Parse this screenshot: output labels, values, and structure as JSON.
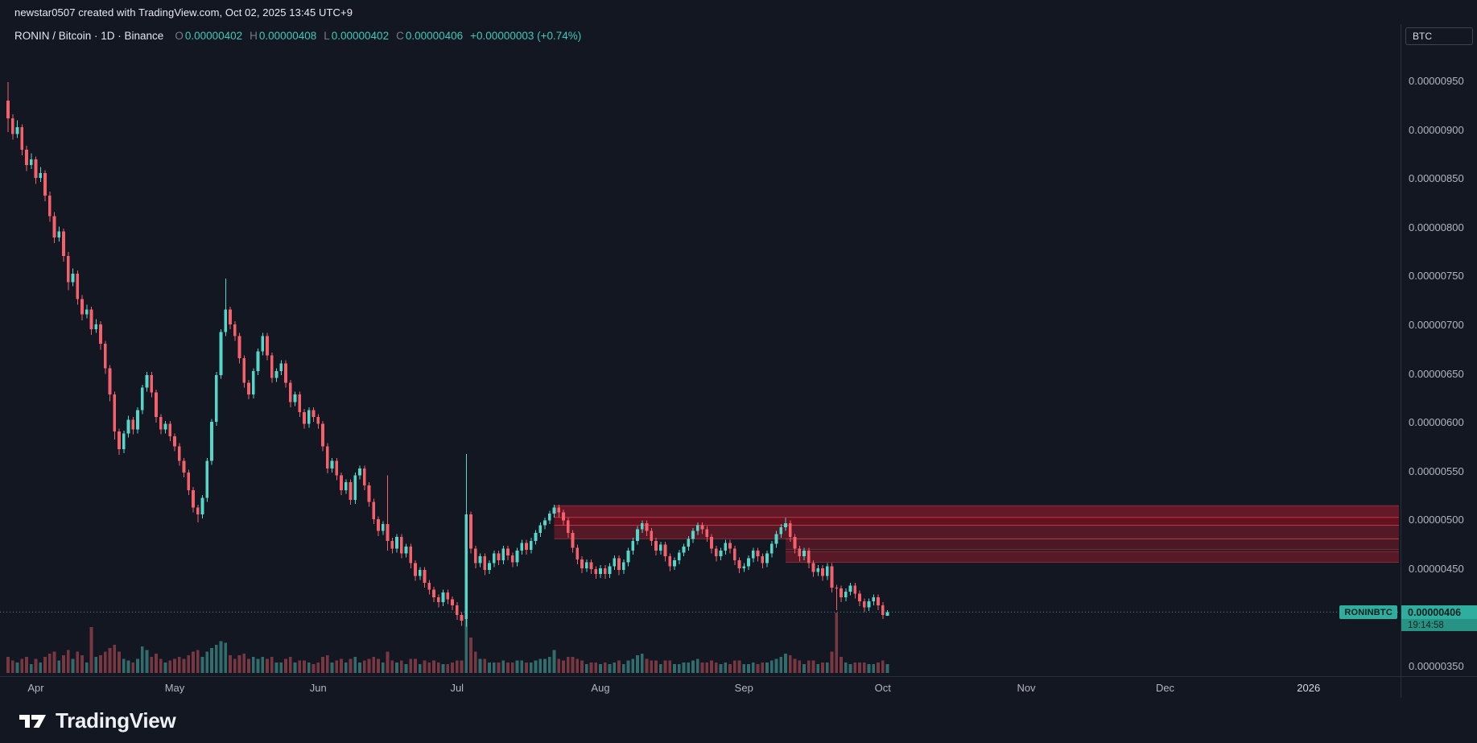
{
  "attribution": "newstar0507 created with TradingView.com, Oct 02, 2025 13:45 UTC+9",
  "header": {
    "symbol": "RONIN / Bitcoin · 1D · Binance",
    "ohlc": {
      "o_label": "O",
      "o": "0.00000402",
      "h_label": "H",
      "h": "0.00000408",
      "l_label": "L",
      "l": "0.00000402",
      "c_label": "C",
      "c": "0.00000406",
      "change": "+0.00000003 (+0.74%)"
    }
  },
  "chart_label": "RONINBTC",
  "price_axis": {
    "currency": "BTC",
    "labels": [
      {
        "price": 950,
        "text": "0.00000950"
      },
      {
        "price": 900,
        "text": "0.00000900"
      },
      {
        "price": 850,
        "text": "0.00000850"
      },
      {
        "price": 800,
        "text": "0.00000800"
      },
      {
        "price": 750,
        "text": "0.00000750"
      },
      {
        "price": 700,
        "text": "0.00000700"
      },
      {
        "price": 650,
        "text": "0.00000650"
      },
      {
        "price": 600,
        "text": "0.00000600"
      },
      {
        "price": 550,
        "text": "0.00000550"
      },
      {
        "price": 500,
        "text": "0.00000500"
      },
      {
        "price": 450,
        "text": "0.00000450"
      },
      {
        "price": 350,
        "text": "0.00000350"
      }
    ],
    "last_price": {
      "text": "0.00000406",
      "price": 406,
      "countdown": "19:14:58"
    }
  },
  "time_axis": {
    "labels": [
      {
        "text": "Apr",
        "idx": 6
      },
      {
        "text": "May",
        "idx": 36
      },
      {
        "text": "Jun",
        "idx": 67
      },
      {
        "text": "Jul",
        "idx": 97
      },
      {
        "text": "Aug",
        "idx": 128
      },
      {
        "text": "Sep",
        "idx": 159
      },
      {
        "text": "Oct",
        "idx": 189
      },
      {
        "text": "Nov",
        "idx": 220
      },
      {
        "text": "Dec",
        "idx": 250
      },
      {
        "text": "2026",
        "idx": 281,
        "year": true
      }
    ]
  },
  "logo": {
    "text": "TradingView"
  },
  "colors": {
    "bg": "#131722",
    "panel_border": "#2a2e39",
    "text": "#d1d4dc",
    "text_dim": "#787b86",
    "axis_text": "#b2b5be",
    "up": "#54d6c8",
    "down": "#f6606b",
    "vol_up": "rgba(84,214,200,0.45)",
    "vol_down": "rgba(246,96,107,0.45)",
    "tag_bg": "#2fae9f",
    "tag_bg_dark": "#279384",
    "tag_text": "#0b1f1c",
    "price_line": "rgba(110,203,190,0.65)",
    "header_value": "#3fc8b9",
    "attribution_text": "#e8eaef",
    "logo_text": "#eef0f4",
    "zone_edge": "rgba(247,82,95,0.40)"
  },
  "chart_data": {
    "type": "candlestick",
    "title": "RONIN / Bitcoin",
    "interval": "1D",
    "exchange": "Binance",
    "price_factor": 1e-08,
    "first_candle_date": "2025-03-26",
    "last_candle_date": "2025-10-02",
    "ylim": [
      340,
      980
    ],
    "last_price": 406,
    "zones": [
      {
        "from_price": 503,
        "to_price": 515,
        "start_index": 118,
        "color": "rgba(170,28,45,0.55)"
      },
      {
        "from_price": 495,
        "to_price": 503,
        "start_index": 118,
        "color": "rgba(126,16,32,0.78)"
      },
      {
        "from_price": 481,
        "to_price": 495,
        "start_index": 118,
        "color": "rgba(165,28,45,0.45)"
      },
      {
        "from_price": 470,
        "to_price": 481,
        "start_index": 168,
        "color": "rgba(165,28,45,0.40)"
      },
      {
        "from_price": 457,
        "to_price": 468,
        "start_index": 168,
        "color": "rgba(160,26,42,0.50)"
      }
    ],
    "candles": [
      [
        930,
        949,
        898,
        912,
        9
      ],
      [
        912,
        916,
        890,
        896,
        7
      ],
      [
        896,
        910,
        892,
        903,
        6
      ],
      [
        903,
        906,
        874,
        880,
        8
      ],
      [
        880,
        884,
        858,
        864,
        9
      ],
      [
        864,
        876,
        860,
        870,
        5
      ],
      [
        870,
        873,
        845,
        851,
        8
      ],
      [
        851,
        862,
        847,
        856,
        6
      ],
      [
        856,
        859,
        827,
        833,
        9
      ],
      [
        833,
        837,
        806,
        812,
        11
      ],
      [
        812,
        816,
        784,
        790,
        12
      ],
      [
        790,
        801,
        786,
        796,
        7
      ],
      [
        796,
        799,
        765,
        771,
        10
      ],
      [
        771,
        775,
        736,
        744,
        13
      ],
      [
        744,
        758,
        740,
        753,
        8
      ],
      [
        753,
        756,
        721,
        727,
        12
      ],
      [
        727,
        731,
        705,
        711,
        10
      ],
      [
        711,
        721,
        707,
        716,
        6
      ],
      [
        716,
        719,
        690,
        696,
        26
      ],
      [
        696,
        706,
        692,
        701,
        9
      ],
      [
        701,
        704,
        675,
        681,
        10
      ],
      [
        681,
        684,
        650,
        656,
        12
      ],
      [
        656,
        659,
        622,
        629,
        14
      ],
      [
        629,
        632,
        583,
        591,
        16
      ],
      [
        591,
        594,
        567,
        573,
        12
      ],
      [
        573,
        592,
        569,
        589,
        8
      ],
      [
        589,
        607,
        585,
        603,
        7
      ],
      [
        603,
        606,
        588,
        593,
        6
      ],
      [
        593,
        616,
        589,
        613,
        8
      ],
      [
        613,
        639,
        609,
        636,
        15
      ],
      [
        636,
        652,
        632,
        649,
        13
      ],
      [
        649,
        652,
        626,
        631,
        9
      ],
      [
        631,
        634,
        600,
        606,
        11
      ],
      [
        606,
        609,
        588,
        593,
        8
      ],
      [
        593,
        602,
        589,
        599,
        6
      ],
      [
        599,
        602,
        581,
        586,
        7
      ],
      [
        586,
        589,
        571,
        576,
        8
      ],
      [
        576,
        579,
        556,
        561,
        9
      ],
      [
        561,
        564,
        544,
        549,
        8
      ],
      [
        549,
        552,
        526,
        531,
        10
      ],
      [
        531,
        534,
        508,
        513,
        12
      ],
      [
        513,
        516,
        498,
        506,
        13
      ],
      [
        506,
        526,
        502,
        523,
        9
      ],
      [
        523,
        564,
        519,
        561,
        12
      ],
      [
        561,
        604,
        557,
        601,
        14
      ],
      [
        601,
        652,
        597,
        649,
        16
      ],
      [
        649,
        696,
        645,
        693,
        18
      ],
      [
        693,
        748,
        689,
        716,
        17
      ],
      [
        716,
        719,
        696,
        701,
        10
      ],
      [
        701,
        704,
        684,
        689,
        8
      ],
      [
        689,
        692,
        661,
        666,
        10
      ],
      [
        666,
        669,
        636,
        641,
        11
      ],
      [
        641,
        644,
        624,
        629,
        8
      ],
      [
        629,
        656,
        625,
        653,
        9
      ],
      [
        653,
        676,
        649,
        673,
        8
      ],
      [
        673,
        692,
        669,
        689,
        9
      ],
      [
        689,
        692,
        664,
        669,
        8
      ],
      [
        669,
        672,
        641,
        646,
        9
      ],
      [
        646,
        656,
        642,
        653,
        6
      ],
      [
        653,
        664,
        649,
        661,
        6
      ],
      [
        661,
        664,
        636,
        641,
        8
      ],
      [
        641,
        644,
        616,
        621,
        9
      ],
      [
        621,
        632,
        617,
        629,
        6
      ],
      [
        629,
        632,
        606,
        611,
        7
      ],
      [
        611,
        614,
        594,
        599,
        7
      ],
      [
        599,
        616,
        595,
        613,
        6
      ],
      [
        613,
        616,
        601,
        606,
        5
      ],
      [
        606,
        609,
        594,
        599,
        6
      ],
      [
        599,
        602,
        571,
        576,
        9
      ],
      [
        576,
        579,
        548,
        553,
        10
      ],
      [
        553,
        564,
        549,
        561,
        6
      ],
      [
        561,
        564,
        541,
        546,
        7
      ],
      [
        546,
        549,
        526,
        531,
        8
      ],
      [
        531,
        542,
        527,
        539,
        6
      ],
      [
        539,
        542,
        516,
        521,
        8
      ],
      [
        521,
        549,
        517,
        546,
        9
      ],
      [
        546,
        556,
        542,
        553,
        6
      ],
      [
        553,
        556,
        531,
        536,
        7
      ],
      [
        536,
        539,
        514,
        519,
        8
      ],
      [
        519,
        522,
        496,
        501,
        9
      ],
      [
        501,
        504,
        484,
        489,
        8
      ],
      [
        489,
        499,
        485,
        496,
        6
      ],
      [
        496,
        546,
        469,
        479,
        12
      ],
      [
        479,
        482,
        466,
        471,
        7
      ],
      [
        471,
        486,
        467,
        483,
        6
      ],
      [
        483,
        486,
        461,
        466,
        7
      ],
      [
        466,
        476,
        462,
        473,
        5
      ],
      [
        473,
        476,
        451,
        456,
        8
      ],
      [
        456,
        459,
        438,
        443,
        8
      ],
      [
        443,
        452,
        439,
        449,
        5
      ],
      [
        449,
        452,
        431,
        436,
        7
      ],
      [
        436,
        439,
        424,
        429,
        6
      ],
      [
        429,
        432,
        416,
        421,
        7
      ],
      [
        421,
        424,
        411,
        416,
        6
      ],
      [
        416,
        429,
        412,
        426,
        5
      ],
      [
        426,
        429,
        414,
        419,
        5
      ],
      [
        419,
        422,
        408,
        413,
        6
      ],
      [
        413,
        416,
        398,
        403,
        7
      ],
      [
        403,
        406,
        392,
        397,
        7
      ],
      [
        399,
        568,
        391,
        506,
        42
      ],
      [
        506,
        509,
        466,
        471,
        20
      ],
      [
        471,
        474,
        451,
        456,
        12
      ],
      [
        456,
        466,
        452,
        463,
        8
      ],
      [
        463,
        466,
        444,
        449,
        8
      ],
      [
        449,
        459,
        445,
        456,
        6
      ],
      [
        456,
        469,
        452,
        466,
        6
      ],
      [
        466,
        469,
        454,
        459,
        6
      ],
      [
        459,
        474,
        455,
        471,
        7
      ],
      [
        471,
        474,
        459,
        464,
        6
      ],
      [
        464,
        467,
        452,
        457,
        6
      ],
      [
        457,
        472,
        453,
        469,
        7
      ],
      [
        469,
        480,
        465,
        477,
        7
      ],
      [
        477,
        480,
        465,
        470,
        6
      ],
      [
        470,
        482,
        466,
        479,
        6
      ],
      [
        479,
        490,
        475,
        487,
        7
      ],
      [
        487,
        498,
        483,
        495,
        8
      ],
      [
        495,
        503,
        491,
        500,
        8
      ],
      [
        500,
        510,
        496,
        507,
        9
      ],
      [
        507,
        516,
        503,
        513,
        13
      ],
      [
        513,
        516,
        503,
        508,
        8
      ],
      [
        508,
        511,
        495,
        500,
        7
      ],
      [
        500,
        503,
        482,
        487,
        9
      ],
      [
        487,
        490,
        467,
        472,
        9
      ],
      [
        472,
        475,
        455,
        460,
        8
      ],
      [
        460,
        463,
        446,
        451,
        7
      ],
      [
        451,
        460,
        447,
        457,
        5
      ],
      [
        457,
        460,
        445,
        450,
        6
      ],
      [
        450,
        453,
        440,
        445,
        6
      ],
      [
        445,
        454,
        441,
        451,
        5
      ],
      [
        451,
        454,
        440,
        445,
        6
      ],
      [
        445,
        456,
        441,
        453,
        5
      ],
      [
        453,
        464,
        449,
        461,
        6
      ],
      [
        461,
        464,
        444,
        449,
        7
      ],
      [
        449,
        460,
        445,
        457,
        5
      ],
      [
        457,
        472,
        453,
        469,
        7
      ],
      [
        469,
        482,
        465,
        479,
        8
      ],
      [
        479,
        494,
        475,
        491,
        10
      ],
      [
        491,
        500,
        487,
        497,
        11
      ],
      [
        497,
        500,
        484,
        489,
        8
      ],
      [
        489,
        492,
        474,
        479,
        7
      ],
      [
        479,
        482,
        464,
        469,
        7
      ],
      [
        469,
        478,
        465,
        475,
        5
      ],
      [
        475,
        478,
        458,
        463,
        7
      ],
      [
        463,
        466,
        448,
        453,
        7
      ],
      [
        453,
        462,
        449,
        459,
        5
      ],
      [
        459,
        470,
        455,
        467,
        5
      ],
      [
        467,
        476,
        463,
        473,
        6
      ],
      [
        473,
        484,
        469,
        481,
        6
      ],
      [
        481,
        492,
        477,
        489,
        7
      ],
      [
        489,
        498,
        485,
        495,
        8
      ],
      [
        495,
        498,
        486,
        491,
        6
      ],
      [
        491,
        494,
        478,
        483,
        6
      ],
      [
        483,
        486,
        466,
        471,
        7
      ],
      [
        471,
        474,
        458,
        463,
        6
      ],
      [
        463,
        472,
        459,
        469,
        5
      ],
      [
        469,
        480,
        465,
        477,
        6
      ],
      [
        477,
        480,
        466,
        471,
        5
      ],
      [
        471,
        474,
        454,
        459,
        7
      ],
      [
        459,
        462,
        446,
        451,
        7
      ],
      [
        451,
        456,
        447,
        453,
        5
      ],
      [
        453,
        464,
        449,
        461,
        5
      ],
      [
        461,
        472,
        457,
        469,
        6
      ],
      [
        469,
        472,
        458,
        463,
        5
      ],
      [
        463,
        466,
        451,
        456,
        6
      ],
      [
        456,
        469,
        452,
        466,
        6
      ],
      [
        466,
        479,
        462,
        476,
        7
      ],
      [
        476,
        489,
        472,
        486,
        8
      ],
      [
        486,
        496,
        482,
        493,
        9
      ],
      [
        493,
        503,
        489,
        497,
        11
      ],
      [
        497,
        500,
        478,
        483,
        10
      ],
      [
        483,
        486,
        466,
        471,
        8
      ],
      [
        471,
        474,
        458,
        463,
        7
      ],
      [
        463,
        472,
        459,
        469,
        5
      ],
      [
        469,
        472,
        451,
        456,
        7
      ],
      [
        456,
        459,
        442,
        447,
        7
      ],
      [
        447,
        454,
        443,
        451,
        5
      ],
      [
        451,
        454,
        438,
        443,
        6
      ],
      [
        443,
        456,
        439,
        453,
        6
      ],
      [
        453,
        456,
        426,
        431,
        12
      ],
      [
        431,
        434,
        408,
        430,
        34
      ],
      [
        430,
        433,
        416,
        421,
        9
      ],
      [
        421,
        430,
        417,
        427,
        6
      ],
      [
        427,
        436,
        423,
        433,
        5
      ],
      [
        433,
        436,
        420,
        425,
        6
      ],
      [
        425,
        428,
        412,
        417,
        6
      ],
      [
        417,
        420,
        406,
        411,
        6
      ],
      [
        411,
        420,
        407,
        417,
        5
      ],
      [
        417,
        424,
        413,
        421,
        5
      ],
      [
        421,
        424,
        408,
        413,
        6
      ],
      [
        413,
        416,
        399,
        403,
        7
      ],
      [
        402,
        408,
        402,
        406,
        5
      ]
    ]
  }
}
